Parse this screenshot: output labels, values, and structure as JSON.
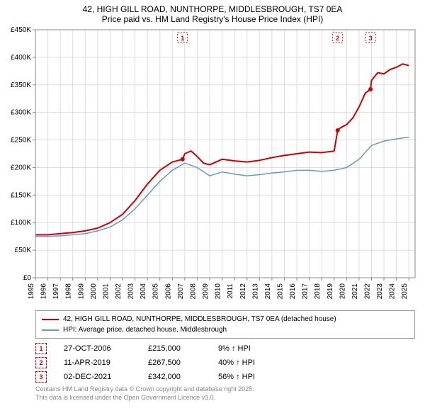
{
  "title_line1": "42, HIGH GILL ROAD, NUNTHORPE, MIDDLESBROUGH, TS7 0EA",
  "title_line2": "Price paid vs. HM Land Registry's House Price Index (HPI)",
  "chart": {
    "type": "line",
    "background_color": "#ffffff",
    "grid_color": "#dddddd",
    "axis_color": "#888888",
    "tick_font_size": 10,
    "tick_color": "#000000",
    "x_min": 1995,
    "x_max": 2025.5,
    "x_ticks": [
      1995,
      1996,
      1997,
      1998,
      1999,
      2000,
      2001,
      2002,
      2003,
      2004,
      2005,
      2006,
      2007,
      2008,
      2009,
      2010,
      2011,
      2012,
      2013,
      2014,
      2015,
      2016,
      2017,
      2018,
      2019,
      2020,
      2021,
      2022,
      2023,
      2024,
      2025
    ],
    "y_min": 0,
    "y_max": 450000,
    "y_ticks": [
      0,
      50000,
      100000,
      150000,
      200000,
      250000,
      300000,
      350000,
      400000,
      450000
    ],
    "y_tick_labels": [
      "£0",
      "£50K",
      "£100K",
      "£150K",
      "£200K",
      "£250K",
      "£300K",
      "£350K",
      "£400K",
      "£450K"
    ],
    "series": [
      {
        "name": "42, HIGH GILL ROAD, NUNTHORPE, MIDDLESBROUGH, TS7 0EA (detached house)",
        "color": "#cc0000",
        "width": 2,
        "points": [
          [
            1995,
            78000
          ],
          [
            1996,
            78000
          ],
          [
            1997,
            80000
          ],
          [
            1998,
            82000
          ],
          [
            1999,
            85000
          ],
          [
            2000,
            90000
          ],
          [
            2001,
            100000
          ],
          [
            2002,
            115000
          ],
          [
            2003,
            140000
          ],
          [
            2004,
            170000
          ],
          [
            2005,
            195000
          ],
          [
            2006,
            210000
          ],
          [
            2006.82,
            215000
          ],
          [
            2007,
            225000
          ],
          [
            2007.5,
            230000
          ],
          [
            2008,
            220000
          ],
          [
            2008.5,
            208000
          ],
          [
            2009,
            205000
          ],
          [
            2010,
            215000
          ],
          [
            2011,
            212000
          ],
          [
            2012,
            210000
          ],
          [
            2013,
            213000
          ],
          [
            2014,
            218000
          ],
          [
            2015,
            222000
          ],
          [
            2016,
            225000
          ],
          [
            2017,
            228000
          ],
          [
            2018,
            227000
          ],
          [
            2019,
            230000
          ],
          [
            2019.28,
            267500
          ],
          [
            2019.5,
            272000
          ],
          [
            2020,
            278000
          ],
          [
            2020.5,
            290000
          ],
          [
            2021,
            310000
          ],
          [
            2021.5,
            335000
          ],
          [
            2021.92,
            342000
          ],
          [
            2022,
            358000
          ],
          [
            2022.5,
            372000
          ],
          [
            2023,
            370000
          ],
          [
            2023.5,
            378000
          ],
          [
            2024,
            382000
          ],
          [
            2024.5,
            388000
          ],
          [
            2025,
            385000
          ]
        ]
      },
      {
        "name": "HPI: Average price, detached house, Middlesbrough",
        "color": "#6699cc",
        "width": 1.5,
        "points": [
          [
            1995,
            75000
          ],
          [
            1996,
            75000
          ],
          [
            1997,
            76000
          ],
          [
            1998,
            78000
          ],
          [
            1999,
            80000
          ],
          [
            2000,
            85000
          ],
          [
            2001,
            92000
          ],
          [
            2002,
            105000
          ],
          [
            2003,
            125000
          ],
          [
            2004,
            150000
          ],
          [
            2005,
            175000
          ],
          [
            2006,
            195000
          ],
          [
            2007,
            208000
          ],
          [
            2008,
            200000
          ],
          [
            2009,
            185000
          ],
          [
            2010,
            192000
          ],
          [
            2011,
            188000
          ],
          [
            2012,
            185000
          ],
          [
            2013,
            187000
          ],
          [
            2014,
            190000
          ],
          [
            2015,
            192000
          ],
          [
            2016,
            195000
          ],
          [
            2017,
            195000
          ],
          [
            2018,
            193000
          ],
          [
            2019,
            195000
          ],
          [
            2020,
            200000
          ],
          [
            2021,
            215000
          ],
          [
            2022,
            240000
          ],
          [
            2023,
            248000
          ],
          [
            2024,
            252000
          ],
          [
            2025,
            255000
          ]
        ]
      }
    ],
    "sale_markers": [
      {
        "n": "1",
        "x": 2006.82,
        "y": 215000
      },
      {
        "n": "2",
        "x": 2019.28,
        "y": 267500
      },
      {
        "n": "3",
        "x": 2021.92,
        "y": 342000
      }
    ]
  },
  "legend": {
    "s1_label": "42, HIGH GILL ROAD, NUNTHORPE, MIDDLESBROUGH, TS7 0EA (detached house)",
    "s1_color": "#cc0000",
    "s2_label": "HPI: Average price, detached house, Middlesbrough",
    "s2_color": "#6699cc"
  },
  "sales": [
    {
      "n": "1",
      "date": "27-OCT-2006",
      "price": "£215,000",
      "diff": "9% ↑ HPI"
    },
    {
      "n": "2",
      "date": "11-APR-2019",
      "price": "£267,500",
      "diff": "40% ↑ HPI"
    },
    {
      "n": "3",
      "date": "02-DEC-2021",
      "price": "£342,000",
      "diff": "56% ↑ HPI"
    }
  ],
  "footer_line1": "Contains HM Land Registry data © Crown copyright and database right 2025.",
  "footer_line2": "This data is licensed under the Open Government Licence v3.0."
}
